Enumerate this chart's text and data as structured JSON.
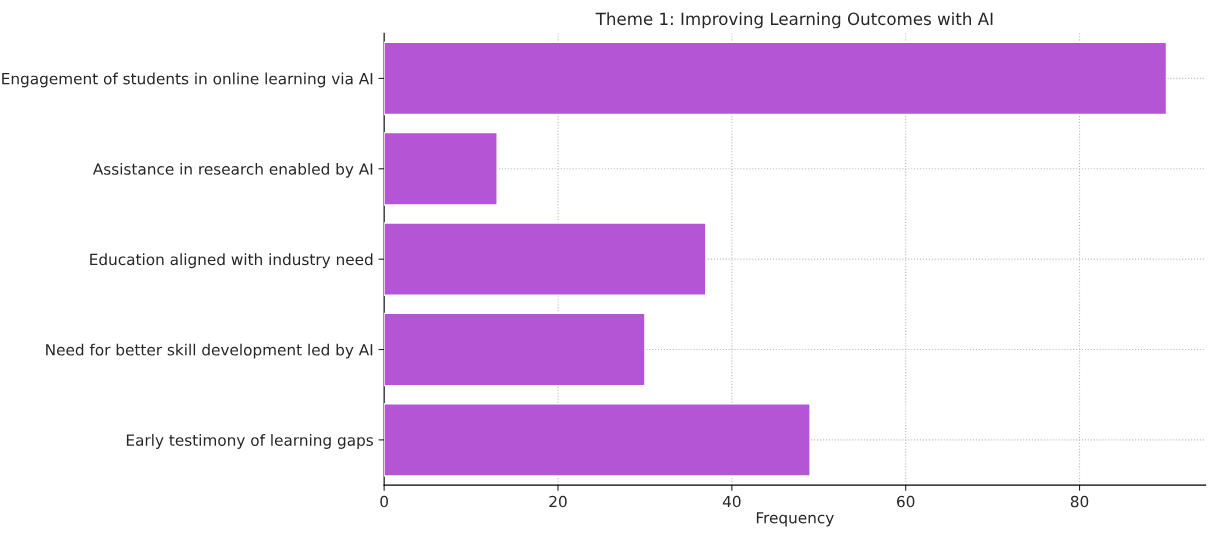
{
  "chart_data": {
    "type": "bar",
    "orientation": "horizontal",
    "title": "Theme 1: Improving Learning Outcomes with AI",
    "xlabel": "Frequency",
    "categories": [
      "Engagement of students in online learning via AI",
      "Assistance in research enabled by AI",
      "Education aligned with industry need",
      "Need for better skill development led by AI",
      "Early testimony of learning gaps"
    ],
    "values": [
      90,
      13,
      37,
      30,
      49
    ],
    "color": "#b455d6",
    "xlim": [
      0,
      94.5
    ],
    "xticks": [
      0,
      20,
      40,
      60,
      80
    ],
    "grid": true
  }
}
